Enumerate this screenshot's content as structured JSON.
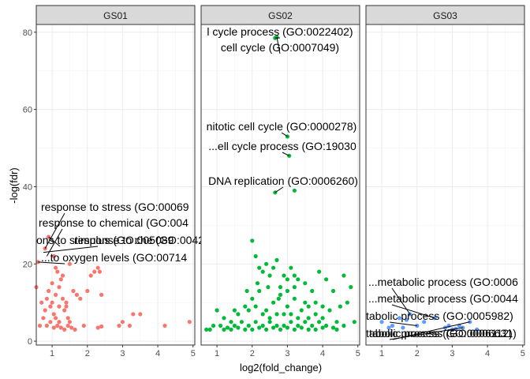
{
  "chart_data": {
    "type": "scatter",
    "xlabel": "log2(fold_change)",
    "ylabel": "-log(fdr)",
    "xlim": [
      0.55,
      5.05
    ],
    "ylim": [
      -1,
      82
    ],
    "x_ticks": [
      1,
      2,
      3,
      4,
      5
    ],
    "y_ticks": [
      0,
      20,
      40,
      60,
      80
    ],
    "grid": true,
    "panels": [
      {
        "name": "GS01",
        "color": "#F8766D",
        "points": [
          [
            0.6,
            20.5
          ],
          [
            0.8,
            24
          ],
          [
            0.9,
            27
          ],
          [
            1.05,
            22
          ],
          [
            0.7,
            10
          ],
          [
            0.8,
            8
          ],
          [
            0.85,
            11
          ],
          [
            0.9,
            13
          ],
          [
            0.95,
            9
          ],
          [
            1.0,
            15
          ],
          [
            1.05,
            7
          ],
          [
            1.1,
            12
          ],
          [
            1.15,
            18
          ],
          [
            1.2,
            14
          ],
          [
            1.25,
            16
          ],
          [
            1.3,
            11
          ],
          [
            1.35,
            8
          ],
          [
            1.4,
            9
          ],
          [
            1.45,
            6
          ],
          [
            1.5,
            5
          ],
          [
            1.3,
            17
          ],
          [
            1.6,
            13
          ],
          [
            1.1,
            6
          ],
          [
            1.2,
            5
          ],
          [
            0.75,
            6
          ],
          [
            0.65,
            4
          ],
          [
            0.85,
            4
          ],
          [
            0.95,
            5
          ],
          [
            1.05,
            3.5
          ],
          [
            1.15,
            4
          ],
          [
            1.25,
            3.5
          ],
          [
            1.35,
            3
          ],
          [
            1.45,
            4
          ],
          [
            1.55,
            3.5
          ],
          [
            1.65,
            3
          ],
          [
            1.0,
            10
          ],
          [
            1.2,
            9
          ],
          [
            1.4,
            10
          ],
          [
            1.7,
            12
          ],
          [
            1.8,
            11
          ],
          [
            2.0,
            13
          ],
          [
            2.1,
            17
          ],
          [
            2.2,
            18
          ],
          [
            2.3,
            19
          ],
          [
            2.35,
            18
          ],
          [
            2.4,
            12
          ],
          [
            1.9,
            4
          ],
          [
            2.3,
            3.5
          ],
          [
            2.4,
            3.8
          ],
          [
            2.9,
            4
          ],
          [
            3.0,
            5
          ],
          [
            3.2,
            4
          ],
          [
            3.3,
            7
          ],
          [
            3.5,
            7
          ],
          [
            4.2,
            4
          ],
          [
            4.9,
            5
          ],
          [
            0.55,
            14
          ],
          [
            1.1,
            19
          ],
          [
            1.5,
            20
          ]
        ],
        "labels": [
          {
            "text": "response to stress (GO:00069",
            "x": 0.8,
            "y": 24
          },
          {
            "text": "response to chemical (GO:004",
            "x": 0.85,
            "y": 22
          },
          {
            "text": "ons to stimulus (GO:005089",
            "x": 0.9,
            "y": 27
          },
          {
            "text": "response to che (GO:0042221)",
            "x": 0.75,
            "y": 23
          },
          {
            "text": "...to oxygen levels (GO:00714",
            "x": 0.6,
            "y": 20.5
          }
        ]
      },
      {
        "name": "GS02",
        "color": "#00BA38",
        "points": [
          [
            2.65,
            78.5
          ],
          [
            2.7,
            78.7
          ],
          [
            3.0,
            53
          ],
          [
            3.05,
            48
          ],
          [
            2.65,
            38.5
          ],
          [
            3.2,
            39
          ],
          [
            2.0,
            26
          ],
          [
            2.1,
            22
          ],
          [
            2.2,
            19
          ],
          [
            2.3,
            18
          ],
          [
            2.4,
            20
          ],
          [
            2.5,
            17
          ],
          [
            2.6,
            19
          ],
          [
            2.7,
            21
          ],
          [
            2.8,
            14
          ],
          [
            2.9,
            17
          ],
          [
            3.0,
            16
          ],
          [
            3.1,
            19
          ],
          [
            3.2,
            14
          ],
          [
            3.3,
            16
          ],
          [
            3.5,
            15
          ],
          [
            3.7,
            13
          ],
          [
            3.9,
            18
          ],
          [
            4.1,
            16
          ],
          [
            4.3,
            13
          ],
          [
            4.5,
            9
          ],
          [
            4.7,
            10
          ],
          [
            4.8,
            14
          ],
          [
            4.6,
            17
          ],
          [
            3.8,
            10
          ],
          [
            1.0,
            8
          ],
          [
            1.2,
            6
          ],
          [
            1.4,
            5
          ],
          [
            1.6,
            7
          ],
          [
            1.8,
            9
          ],
          [
            2.0,
            11
          ],
          [
            2.2,
            13
          ],
          [
            2.4,
            8
          ],
          [
            2.6,
            10
          ],
          [
            2.8,
            12
          ],
          [
            3.0,
            9
          ],
          [
            3.2,
            11
          ],
          [
            3.4,
            8
          ],
          [
            3.6,
            9
          ],
          [
            3.8,
            7
          ],
          [
            4.0,
            6
          ],
          [
            4.2,
            8
          ],
          [
            4.4,
            5
          ],
          [
            1.1,
            4
          ],
          [
            1.3,
            3.5
          ],
          [
            1.5,
            4
          ],
          [
            1.7,
            5
          ],
          [
            1.9,
            4
          ],
          [
            2.1,
            5
          ],
          [
            2.3,
            4
          ],
          [
            2.5,
            5
          ],
          [
            2.7,
            4
          ],
          [
            2.9,
            4
          ],
          [
            3.1,
            5
          ],
          [
            3.3,
            4
          ],
          [
            3.5,
            5
          ],
          [
            3.7,
            4
          ],
          [
            3.9,
            5
          ],
          [
            4.1,
            4
          ],
          [
            4.3,
            3.5
          ],
          [
            4.6,
            4
          ],
          [
            4.9,
            5
          ],
          [
            0.7,
            3
          ],
          [
            0.8,
            3
          ],
          [
            0.9,
            4
          ],
          [
            1.2,
            3
          ],
          [
            1.4,
            3
          ],
          [
            1.6,
            3.5
          ],
          [
            1.8,
            3
          ],
          [
            2.0,
            3
          ],
          [
            2.2,
            3.5
          ],
          [
            2.4,
            3
          ],
          [
            2.6,
            3.5
          ],
          [
            2.8,
            3
          ],
          [
            3.0,
            3.5
          ],
          [
            3.2,
            3
          ],
          [
            3.4,
            3.5
          ],
          [
            3.6,
            3
          ],
          [
            3.8,
            3
          ],
          [
            4.0,
            3.5
          ],
          [
            4.4,
            3
          ],
          [
            2.5,
            6
          ],
          [
            2.9,
            7
          ],
          [
            3.3,
            6
          ],
          [
            3.6,
            6
          ],
          [
            4.0,
            9
          ],
          [
            1.5,
            8
          ],
          [
            1.9,
            8
          ],
          [
            2.1,
            9
          ],
          [
            2.3,
            7
          ],
          [
            2.7,
            7
          ],
          [
            3.1,
            7
          ],
          [
            3.5,
            10
          ],
          [
            2.45,
            14
          ],
          [
            2.75,
            11
          ],
          [
            3.0,
            13
          ],
          [
            3.2,
            17
          ],
          [
            2.15,
            15
          ],
          [
            1.85,
            13
          ]
        ],
        "labels": [
          {
            "text": "l cycle process (GO:0022402)",
            "x": 2.65,
            "y": 78.5
          },
          {
            "text": "cell cycle (GO:0007049)",
            "x": 2.7,
            "y": 78.7
          },
          {
            "text": "nitotic cell cycle (GO:0000278)",
            "x": 3.0,
            "y": 53
          },
          {
            "text": "...ell cycle process (GO:19030",
            "x": 3.05,
            "y": 48
          },
          {
            "text": "DNA replication (GO:0006260)",
            "x": 2.65,
            "y": 38.5
          }
        ]
      },
      {
        "name": "GS03",
        "color": "#619CFF",
        "points": [
          [
            1.0,
            5
          ],
          [
            1.3,
            4
          ],
          [
            1.5,
            6
          ],
          [
            1.7,
            5.5
          ],
          [
            1.8,
            7
          ],
          [
            2.0,
            4
          ],
          [
            2.2,
            5
          ],
          [
            2.5,
            6
          ],
          [
            2.8,
            3.5
          ],
          [
            2.9,
            4
          ],
          [
            3.0,
            3
          ],
          [
            3.1,
            3.2
          ],
          [
            3.2,
            4
          ],
          [
            3.3,
            3.5
          ],
          [
            3.5,
            5
          ],
          [
            3.7,
            3
          ],
          [
            1.2,
            3.5
          ],
          [
            1.6,
            3.5
          ]
        ],
        "labels": [
          {
            "text": "...metabolic process (GO:0006",
            "x": 1.8,
            "y": 7
          },
          {
            "text": "...metabolic process (GO:0044",
            "x": 2.5,
            "y": 6
          },
          {
            "text": "tabolic process (GO:0005982)",
            "x": 2.0,
            "y": 4
          },
          {
            "text": "tabolic process (GO:0006112)",
            "x": 3.3,
            "y": 3.5
          },
          {
            "text": "tabolic process (GO:0006631)",
            "x": 3.5,
            "y": 5
          }
        ]
      }
    ]
  }
}
